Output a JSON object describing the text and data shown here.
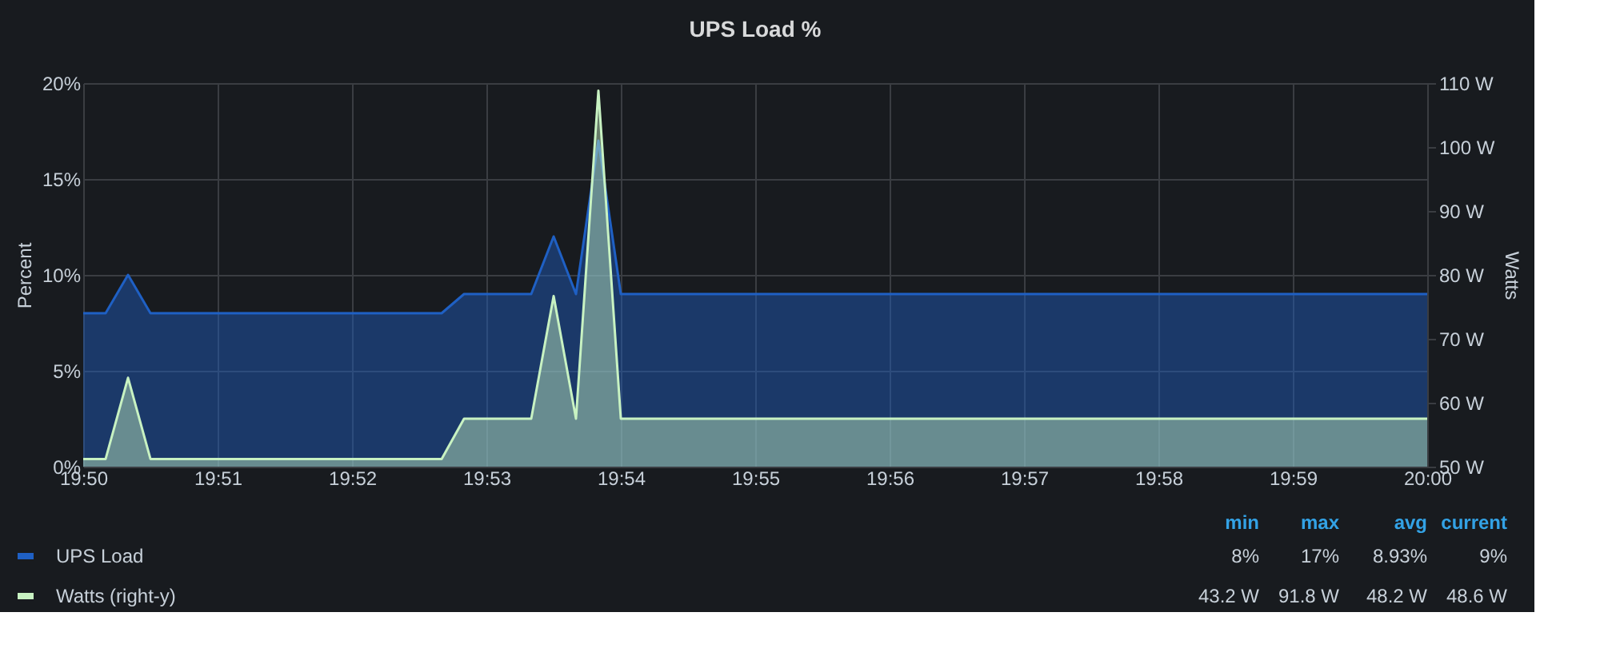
{
  "chart_data": {
    "type": "area",
    "title": "UPS Load %",
    "ylabel": "Percent",
    "y2label": "Watts",
    "x": [
      19.83333,
      19.83611,
      19.83889,
      19.84167,
      19.87778,
      19.88056,
      19.88889,
      19.89167,
      19.89444,
      19.89722,
      19.9,
      20.0
    ],
    "series": [
      {
        "name": "UPS Load",
        "color": "#1f60c4",
        "values": [
          8,
          8,
          10,
          8,
          8,
          9,
          9,
          12,
          9,
          17,
          9,
          9
        ]
      },
      {
        "name": "Watts (right-y)",
        "color": "#c8f2c2",
        "axis": "y2",
        "values": [
          51.2,
          51.2,
          63.9,
          51.2,
          51.2,
          57.5,
          57.5,
          76.7,
          57.5,
          108.8,
          57.5,
          57.5
        ]
      }
    ],
    "xlim": [
      19.83333,
      20.0
    ],
    "xticks": [
      {
        "value": 19.83333,
        "label": "19:50"
      },
      {
        "value": 19.85,
        "label": "19:51"
      },
      {
        "value": 19.86667,
        "label": "19:52"
      },
      {
        "value": 19.88333,
        "label": "19:53"
      },
      {
        "value": 19.9,
        "label": "19:54"
      },
      {
        "value": 19.91667,
        "label": "19:55"
      },
      {
        "value": 19.93333,
        "label": "19:56"
      },
      {
        "value": 19.95,
        "label": "19:57"
      },
      {
        "value": 19.96667,
        "label": "19:58"
      },
      {
        "value": 19.98333,
        "label": "19:59"
      },
      {
        "value": 20.0,
        "label": "20:00"
      }
    ],
    "ylim": [
      0,
      20
    ],
    "yticks": [
      {
        "value": 0,
        "label": "0%"
      },
      {
        "value": 5,
        "label": "5%"
      },
      {
        "value": 10,
        "label": "10%"
      },
      {
        "value": 15,
        "label": "15%"
      },
      {
        "value": 20,
        "label": "20%"
      }
    ],
    "y2lim": [
      50,
      110
    ],
    "y2ticks": [
      {
        "value": 50,
        "label": "50 W"
      },
      {
        "value": 60,
        "label": "60 W"
      },
      {
        "value": 70,
        "label": "70 W"
      },
      {
        "value": 80,
        "label": "80 W"
      },
      {
        "value": 90,
        "label": "90 W"
      },
      {
        "value": 100,
        "label": "100 W"
      },
      {
        "value": 110,
        "label": "110 W"
      }
    ],
    "annotations": [
      "min",
      "max",
      "avg",
      "current",
      "8%",
      "17%",
      "8.93%",
      "9%",
      "43.2 W",
      "91.8 W",
      "48.2 W",
      "48.6 W"
    ],
    "grid": true,
    "legend": "bottom",
    "marker": "none",
    "line_style": "solid"
  }
}
